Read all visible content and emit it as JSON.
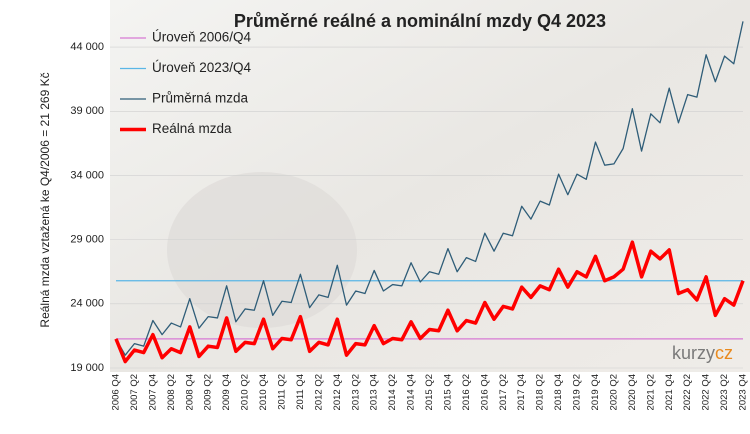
{
  "chart_data": {
    "type": "line",
    "title": "Průměrné reálné a nominální mzdy Q4 2023",
    "y_label": "Reálná mzda vztažená ke Q4/2006 = 21 269 Kč",
    "watermark": [
      "kurzy",
      "cz"
    ],
    "categories": [
      "2006 Q4",
      null,
      "2007 Q2",
      null,
      "2007 Q4",
      null,
      "2008 Q2",
      null,
      "2008 Q4",
      null,
      "2009 Q2",
      null,
      "2009 Q4",
      null,
      "2010 Q2",
      null,
      "2010 Q4",
      null,
      "2011 Q2",
      null,
      "2011 Q4",
      null,
      "2012 Q2",
      null,
      "2012 Q4",
      null,
      "2013 Q2",
      null,
      "2013 Q4",
      null,
      "2014 Q2",
      null,
      "2014 Q4",
      null,
      "2015 Q2",
      null,
      "2015 Q4",
      null,
      "2016 Q2",
      null,
      "2016 Q4",
      null,
      "2017 Q2",
      null,
      "2017 Q4",
      null,
      "2018 Q2",
      null,
      "2018 Q4",
      null,
      "2019 Q2",
      null,
      "2019 Q4",
      null,
      "2020 Q2",
      null,
      "2020 Q4",
      null,
      "2021 Q2",
      null,
      "2021 Q4",
      null,
      "2022 Q2",
      null,
      "2022 Q4",
      null,
      "2023 Q2",
      null,
      "2023 Q4"
    ],
    "reference_lines": [
      {
        "name": "Úroveň 2006/Q4",
        "color": "#d77ad4",
        "value": 21269
      },
      {
        "name": "Úroveň 2023/Q4",
        "color": "#5ab6e6",
        "value": 25800
      }
    ],
    "series": [
      {
        "name": "Průměrná mzda",
        "color": "#2f5d78",
        "width": 1.3,
        "values": [
          21269,
          20000,
          20900,
          20700,
          22700,
          21600,
          22500,
          22200,
          24400,
          22100,
          23000,
          22900,
          25400,
          22600,
          23600,
          23500,
          25800,
          23100,
          24200,
          24100,
          26300,
          23700,
          24700,
          24500,
          27000,
          23900,
          25000,
          24800,
          26600,
          25000,
          25500,
          25400,
          27200,
          25700,
          26500,
          26300,
          28300,
          26500,
          27600,
          27300,
          29500,
          28100,
          29500,
          29300,
          31600,
          30600,
          32000,
          31700,
          34100,
          32500,
          34100,
          33700,
          36600,
          34800,
          34900,
          36100,
          39200,
          35900,
          38800,
          38100,
          40800,
          38100,
          40300,
          40100,
          43400,
          41300,
          43300,
          42700,
          46000
        ]
      },
      {
        "name": "Reálná mzda",
        "color": "#ff0000",
        "width": 3.5,
        "values": [
          21269,
          19500,
          20400,
          20200,
          21600,
          19800,
          20500,
          20200,
          22200,
          19900,
          20700,
          20600,
          22900,
          20300,
          21000,
          20900,
          22800,
          20500,
          21300,
          21200,
          23000,
          20300,
          21000,
          20800,
          22800,
          20000,
          20900,
          20800,
          22300,
          20900,
          21300,
          21200,
          22600,
          21300,
          22000,
          21900,
          23500,
          21900,
          22700,
          22500,
          24100,
          22800,
          23800,
          23600,
          25300,
          24500,
          25400,
          25100,
          26700,
          25300,
          26500,
          26100,
          27700,
          25800,
          26100,
          26700,
          28800,
          26100,
          28100,
          27500,
          28200,
          24800,
          25100,
          24300,
          26100,
          23100,
          24400,
          23900,
          25800
        ]
      }
    ],
    "ylim": [
      19000,
      46500
    ],
    "yticks": [
      {
        "value": 19000,
        "label": "19 000"
      },
      {
        "value": 24000,
        "label": "24 000"
      },
      {
        "value": 29000,
        "label": "29 000"
      },
      {
        "value": 34000,
        "label": "34 000"
      },
      {
        "value": 39000,
        "label": "39 000"
      },
      {
        "value": 44000,
        "label": "44 000"
      }
    ],
    "grid": true
  }
}
